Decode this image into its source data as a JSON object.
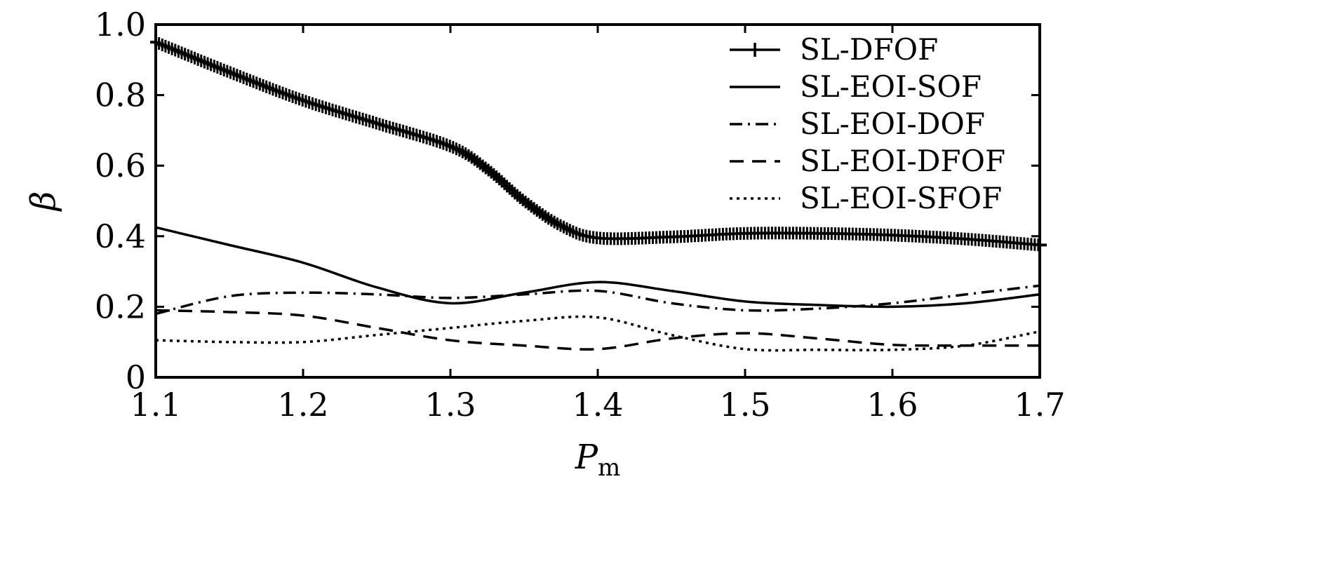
{
  "chart_data": {
    "type": "line",
    "xlabel": "P",
    "xlabel_sub": "m",
    "ylabel": "β",
    "xlim": [
      1.1,
      1.7
    ],
    "ylim": [
      0,
      1.0
    ],
    "x_ticks": [
      1.1,
      1.2,
      1.3,
      1.4,
      1.5,
      1.6,
      1.7
    ],
    "x_tick_labels": [
      "1.1",
      "1.2",
      "1.3",
      "1.4",
      "1.5",
      "1.6",
      "1.7"
    ],
    "y_ticks": [
      0,
      0.2,
      0.4,
      0.6,
      0.8,
      1.0
    ],
    "y_tick_labels": [
      "0",
      "0.2",
      "0.4",
      "0.6",
      "0.8",
      "1.0"
    ],
    "grid": false,
    "legend_position": "top-right",
    "series": [
      {
        "name": "SL-DFOF",
        "style": "plus-markers",
        "color": "#000000",
        "x": [
          1.1,
          1.15,
          1.2,
          1.25,
          1.3,
          1.325,
          1.35,
          1.375,
          1.4,
          1.45,
          1.5,
          1.55,
          1.6,
          1.65,
          1.7
        ],
        "y": [
          0.95,
          0.865,
          0.785,
          0.72,
          0.655,
          0.59,
          0.5,
          0.43,
          0.395,
          0.398,
          0.408,
          0.408,
          0.403,
          0.392,
          0.375
        ]
      },
      {
        "name": "SL-EOI-SOF",
        "style": "solid",
        "color": "#000000",
        "x": [
          1.1,
          1.15,
          1.2,
          1.25,
          1.3,
          1.35,
          1.4,
          1.45,
          1.5,
          1.55,
          1.6,
          1.65,
          1.7
        ],
        "y": [
          0.425,
          0.375,
          0.325,
          0.255,
          0.21,
          0.24,
          0.27,
          0.245,
          0.215,
          0.205,
          0.2,
          0.21,
          0.235
        ]
      },
      {
        "name": "SL-EOI-DOF",
        "style": "dash-dot",
        "color": "#000000",
        "x": [
          1.1,
          1.15,
          1.2,
          1.25,
          1.3,
          1.35,
          1.4,
          1.45,
          1.5,
          1.55,
          1.6,
          1.65,
          1.7
        ],
        "y": [
          0.18,
          0.23,
          0.24,
          0.235,
          0.225,
          0.235,
          0.245,
          0.21,
          0.19,
          0.195,
          0.21,
          0.235,
          0.26
        ]
      },
      {
        "name": "SL-EOI-DFOF",
        "style": "dashed",
        "color": "#000000",
        "x": [
          1.1,
          1.15,
          1.2,
          1.25,
          1.3,
          1.35,
          1.4,
          1.45,
          1.5,
          1.55,
          1.6,
          1.65,
          1.7
        ],
        "y": [
          0.19,
          0.185,
          0.175,
          0.14,
          0.105,
          0.09,
          0.08,
          0.11,
          0.125,
          0.11,
          0.092,
          0.09,
          0.09
        ]
      },
      {
        "name": "SL-EOI-SFOF",
        "style": "dotted",
        "color": "#000000",
        "x": [
          1.1,
          1.15,
          1.2,
          1.25,
          1.3,
          1.35,
          1.4,
          1.45,
          1.5,
          1.55,
          1.6,
          1.65,
          1.7
        ],
        "y": [
          0.105,
          0.1,
          0.1,
          0.12,
          0.14,
          0.16,
          0.17,
          0.12,
          0.08,
          0.078,
          0.078,
          0.09,
          0.13
        ]
      }
    ]
  }
}
